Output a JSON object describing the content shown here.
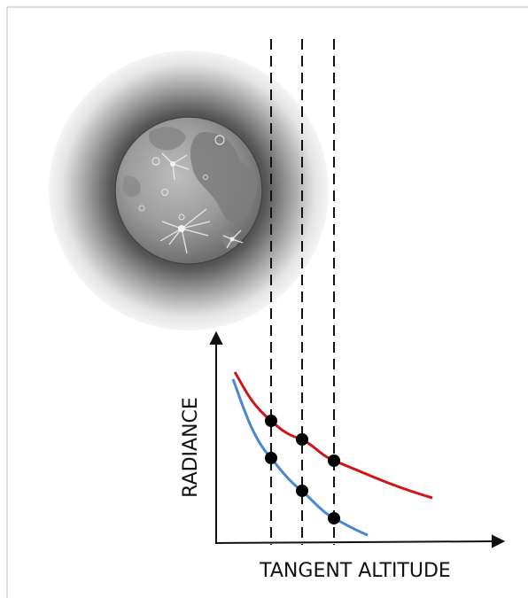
{
  "diagram": {
    "y_axis_label": "RADIANCE",
    "x_axis_label": "TANGENT ALTITUDE"
  },
  "colors": {
    "upper_curve": "#d11414",
    "lower_curve": "#4a86d4",
    "dashed_lines": "#111111",
    "sample_points": "#000000",
    "halo": "#6f6f6f",
    "moon": "#9a9a9a"
  },
  "icons": [
    "moon-icon",
    "atmosphere-halo"
  ]
}
